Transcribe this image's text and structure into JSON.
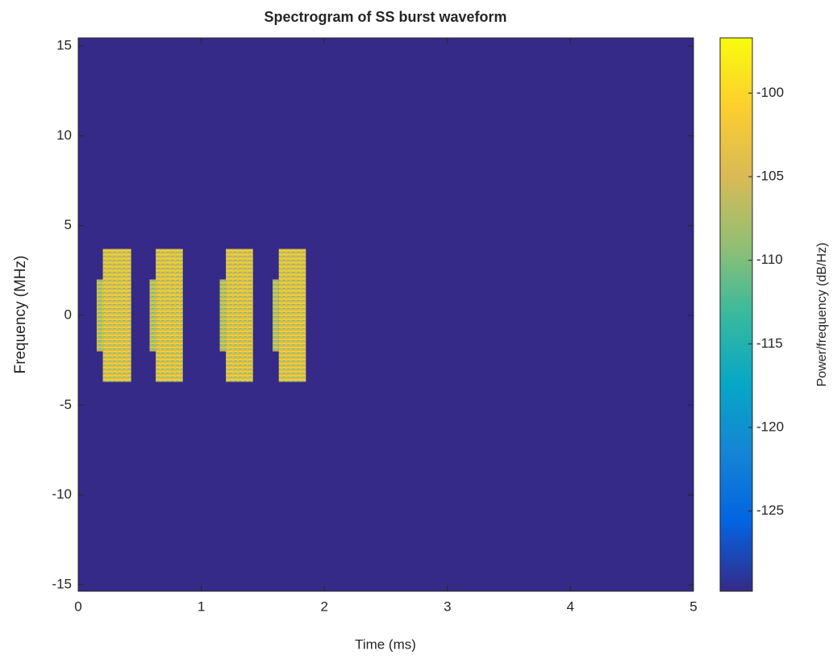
{
  "chart_data": {
    "type": "spectrogram",
    "title": "Spectrogram of SS burst waveform",
    "x_label": "Time (ms)",
    "y_label": "Frequency (MHz)",
    "colorbar_label": "Power/frequency (dB/Hz)",
    "xlim": [
      0,
      5
    ],
    "xticks": [
      0,
      1,
      2,
      3,
      4,
      5
    ],
    "ylim": [
      -15.36,
      15.45
    ],
    "yticks": [
      -15,
      -10,
      -5,
      0,
      5,
      10,
      15
    ],
    "clim": [
      -129.8,
      -96.7
    ],
    "cticks": [
      -125,
      -120,
      -115,
      -110,
      -105,
      -100
    ],
    "colormap": [
      "#352a87",
      "#0363e1",
      "#1485d4",
      "#06a7c6",
      "#38b99e",
      "#92bf73",
      "#d9ba56",
      "#fcce2e",
      "#f9fb0e"
    ],
    "background_power": -129.8,
    "regions": [
      {
        "t": [
          0.15,
          0.2
        ],
        "f": [
          -2,
          2
        ],
        "power": -107
      },
      {
        "t": [
          0.2,
          0.43
        ],
        "f": [
          -3.7,
          3.7
        ],
        "power": -104
      },
      {
        "t": [
          0.58,
          0.63
        ],
        "f": [
          -2,
          2
        ],
        "power": -107
      },
      {
        "t": [
          0.63,
          0.85
        ],
        "f": [
          -3.7,
          3.7
        ],
        "power": -104
      },
      {
        "t": [
          1.15,
          1.2
        ],
        "f": [
          -2,
          2
        ],
        "power": -107
      },
      {
        "t": [
          1.2,
          1.42
        ],
        "f": [
          -3.7,
          3.7
        ],
        "power": -104
      },
      {
        "t": [
          1.58,
          1.63
        ],
        "f": [
          -2,
          2
        ],
        "power": -107
      },
      {
        "t": [
          1.63,
          1.85
        ],
        "f": [
          -3.7,
          3.7
        ],
        "power": -104
      }
    ]
  }
}
